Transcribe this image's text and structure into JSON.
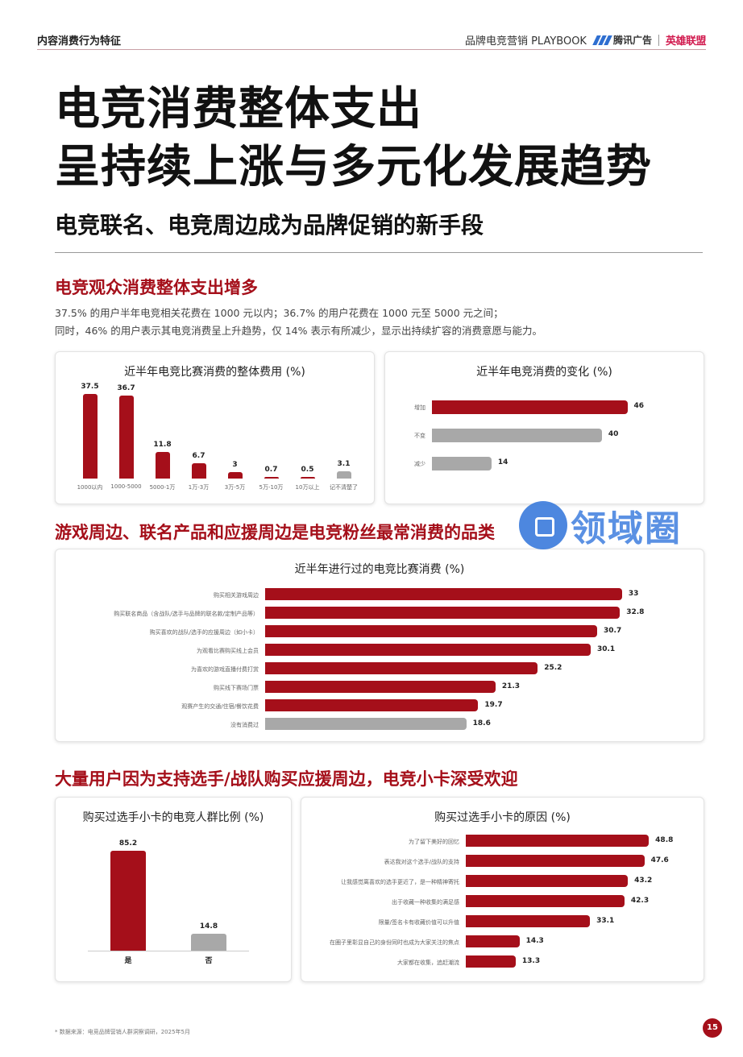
{
  "header": {
    "section": "内容消费行为特征",
    "playbook": "品牌电竞营销 PLAYBOOK",
    "logo_tencent": "腾讯广告",
    "logo_lol": "英雄联盟"
  },
  "headline": {
    "line1": "电竞消费整体支出",
    "line2": "呈持续上涨与多元化发展趋势",
    "subtitle": "电竞联名、电竞周边成为品牌促销的新手段"
  },
  "section1": {
    "title": "电竞观众消费整体支出增多",
    "desc1": "37.5% 的用户半年电竞相关花费在 1000 元以内；36.7% 的用户花费在 1000 元至 5000 元之间；",
    "desc2": "同时，46% 的用户表示其电竞消费呈上升趋势，仅 14% 表示有所减少，显示出持续扩容的消费意愿与能力。"
  },
  "section2": {
    "title": "游戏周边、联名产品和应援周边是电竞粉丝最常消费的品类"
  },
  "section3": {
    "title": "大量用户因为支持选手/战队购买应援周边，电竞小卡深受欢迎"
  },
  "colors": {
    "red": "#a50f1a",
    "gray": "#a8a8a8"
  },
  "chart_data": [
    {
      "id": "spend",
      "type": "bar",
      "title": "近半年电竞比赛消费的整体费用 (%)",
      "categories": [
        "1000以内",
        "1000-5000",
        "5000-1万",
        "1万-3万",
        "3万-5万",
        "5万-10万",
        "10万以上",
        "记不清楚了"
      ],
      "values": [
        37.5,
        36.7,
        11.8,
        6.7,
        3,
        0.7,
        0.5,
        3.1
      ],
      "highlight": [
        true,
        true,
        true,
        true,
        true,
        true,
        true,
        false
      ],
      "ylim": [
        0,
        40
      ]
    },
    {
      "id": "change",
      "type": "bar",
      "orientation": "horizontal",
      "title": "近半年电竞消费的变化 (%)",
      "categories": [
        "增加",
        "不变",
        "减少"
      ],
      "values": [
        46,
        40,
        14
      ],
      "highlight": [
        true,
        false,
        false
      ],
      "xlim": [
        0,
        55
      ]
    },
    {
      "id": "categories",
      "type": "bar",
      "orientation": "horizontal",
      "title": "近半年进行过的电竞比赛消费 (%)",
      "categories": [
        "购买相关游戏周边",
        "购买联名商品（含战队/选手与品牌的联名款/定制产品等）",
        "购买喜欢的战队/选手的应援周边（如小卡）",
        "为观看比赛购买线上会员",
        "为喜欢的游戏直播付费打赏",
        "购买线下赛场门票",
        "观赛产生的交通/住宿/餐饮花费",
        "没有消费过"
      ],
      "values": [
        33,
        32.8,
        30.7,
        30.1,
        25.2,
        21.3,
        19.7,
        18.6
      ],
      "highlight": [
        true,
        true,
        true,
        true,
        true,
        true,
        true,
        false
      ],
      "xlim": [
        0,
        38
      ]
    },
    {
      "id": "card_ratio",
      "type": "bar",
      "title": "购买过选手小卡的电竞人群比例 (%)",
      "categories": [
        "是",
        "否"
      ],
      "values": [
        85.2,
        14.8
      ],
      "highlight": [
        true,
        false
      ],
      "ylim": [
        0,
        100
      ]
    },
    {
      "id": "card_reason",
      "type": "bar",
      "orientation": "horizontal",
      "title": "购买过选手小卡的原因 (%)",
      "categories": [
        "为了留下美好的回忆",
        "表达我对这个选手/战队的支持",
        "让我感觉离喜欢的选手更近了，是一种精神寄托",
        "出于收藏一种收集的满足感",
        "限量/签名卡有收藏价值可以升值",
        "在圈子里彰显自己的身份同时也成为大家关注的焦点",
        "大家都在收集，追赶潮流"
      ],
      "values": [
        48.8,
        47.6,
        43.2,
        42.3,
        33.1,
        14.3,
        13.3
      ],
      "highlight": [
        true,
        true,
        true,
        true,
        true,
        true,
        true
      ],
      "xlim": [
        0,
        58
      ]
    }
  ],
  "watermark": "领域圈",
  "footnote": "* 数据来源：电竞品牌营销人群洞察调研，2025年5月",
  "page_number": "15"
}
